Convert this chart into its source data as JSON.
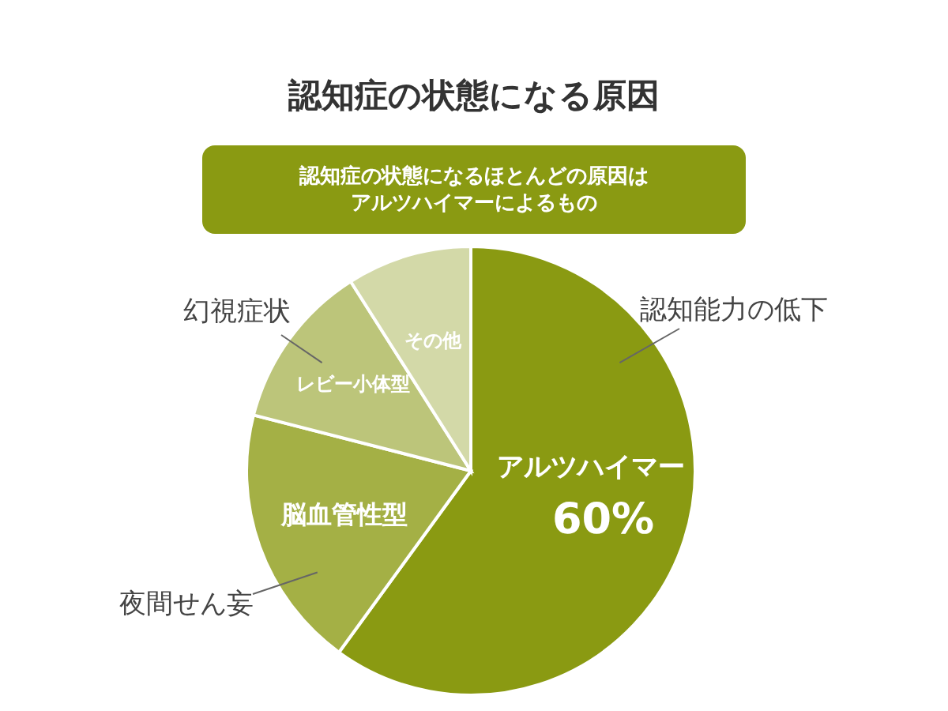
{
  "chart_data": {
    "type": "pie",
    "title": "認知症の状態になる原因",
    "subtitle": "認知症の状態になるほとんどの原因はアルツハイマーによるもの",
    "categories": [
      "アルツハイマー",
      "脳血管性型",
      "レビー小体型",
      "その他"
    ],
    "values": [
      60,
      19,
      12,
      9
    ],
    "value_labels": [
      "60%",
      null,
      null,
      null
    ],
    "colors": [
      "#8a9a12",
      "#a4b045",
      "#bcc57a",
      "#d3d9a8"
    ],
    "annotations": [
      "認知能力の低下",
      "夜間せん妄",
      "幻視症状"
    ],
    "legend": false
  }
}
